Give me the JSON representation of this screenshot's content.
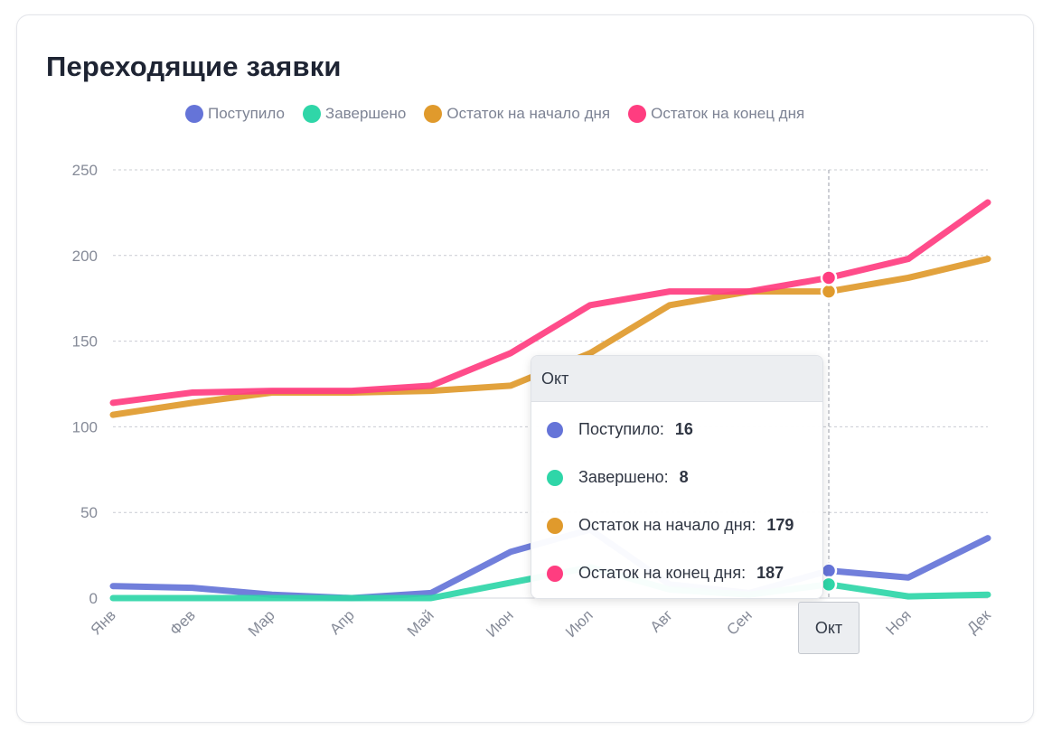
{
  "card": {
    "title": "Переходящие заявки"
  },
  "chart_data": {
    "type": "line",
    "title": "Переходящие заявки",
    "xlabel": "",
    "ylabel": "",
    "ylim": [
      0,
      250
    ],
    "yticks": [
      0,
      50,
      100,
      150,
      200,
      250
    ],
    "grid": true,
    "legend_position": "top",
    "categories": [
      "Янв",
      "Фев",
      "Мар",
      "Апр",
      "Май",
      "Июн",
      "Июл",
      "Авг",
      "Сен",
      "Окт",
      "Ноя",
      "Дек"
    ],
    "series": [
      {
        "name": "Поступило",
        "color": "#6574d8",
        "values": [
          7,
          6,
          2,
          0,
          3,
          27,
          40,
          8,
          3,
          16,
          12,
          35
        ]
      },
      {
        "name": "Завершено",
        "color": "#2fd6a8",
        "values": [
          0,
          0,
          0,
          0,
          0,
          9,
          18,
          5,
          2,
          8,
          1,
          2
        ]
      },
      {
        "name": "Остаток на начало дня",
        "color": "#e09a2c",
        "values": [
          107,
          114,
          120,
          120,
          121,
          124,
          143,
          171,
          179,
          179,
          187,
          198
        ]
      },
      {
        "name": "Остаток на конец дня",
        "color": "#ff3d80",
        "values": [
          114,
          120,
          121,
          121,
          124,
          143,
          171,
          179,
          179,
          187,
          198,
          231
        ]
      }
    ],
    "highlight_index": 9
  },
  "tooltip": {
    "title": "Окт",
    "rows": [
      {
        "label": "Поступило:",
        "value": "16"
      },
      {
        "label": "Завершено:",
        "value": "8"
      },
      {
        "label": "Остаток на начало дня:",
        "value": "179"
      },
      {
        "label": "Остаток на конец дня:",
        "value": "187"
      }
    ]
  },
  "crosshair": {
    "label": "Окт"
  }
}
